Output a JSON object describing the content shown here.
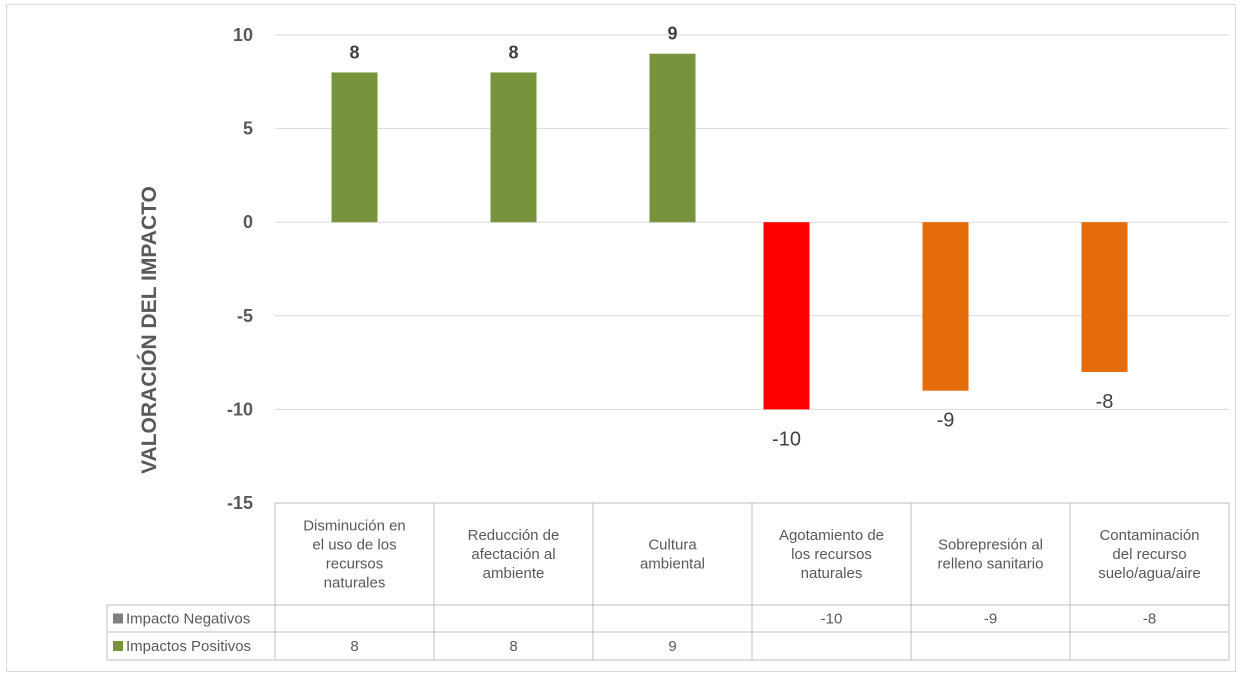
{
  "chart_data": {
    "type": "bar",
    "ylabel": "VALORACIÓN DEL IMPACTO",
    "ylim": [
      -15,
      10
    ],
    "yticks": [
      10,
      5,
      0,
      -5,
      -10,
      -15
    ],
    "grid": true,
    "categories": [
      "Disminución en el uso de los recursos naturales",
      "Reducción de afectación al ambiente",
      "Cultura ambiental",
      "Agotamiento de los recursos naturales",
      "Sobrepresión al relleno sanitario",
      "Contaminación del recurso suelo/agua/aire"
    ],
    "category_lines": [
      [
        "Disminución en",
        "el uso de los",
        "recursos",
        "naturales"
      ],
      [
        "Reducción de",
        "afectación al",
        "ambiente"
      ],
      [
        "Cultura",
        "ambiental"
      ],
      [
        "Agotamiento de",
        "los recursos",
        "naturales"
      ],
      [
        "Sobrepresión al",
        "relleno sanitario"
      ],
      [
        "Contaminación",
        "del recurso",
        "suelo/agua/aire"
      ]
    ],
    "series": [
      {
        "name": "Impacto Negativos",
        "values": [
          null,
          null,
          null,
          -10,
          -9,
          -8
        ],
        "legend_color": "#7f7f7f",
        "bar_colors": [
          null,
          null,
          null,
          "#ff0000",
          "#e46c0a",
          "#e46c0a"
        ]
      },
      {
        "name": "Impactos Positivos",
        "values": [
          8,
          8,
          9,
          null,
          null,
          null
        ],
        "legend_color": "#77933c",
        "bar_colors": [
          "#77933c",
          "#77933c",
          "#77933c",
          null,
          null,
          null
        ]
      }
    ]
  }
}
